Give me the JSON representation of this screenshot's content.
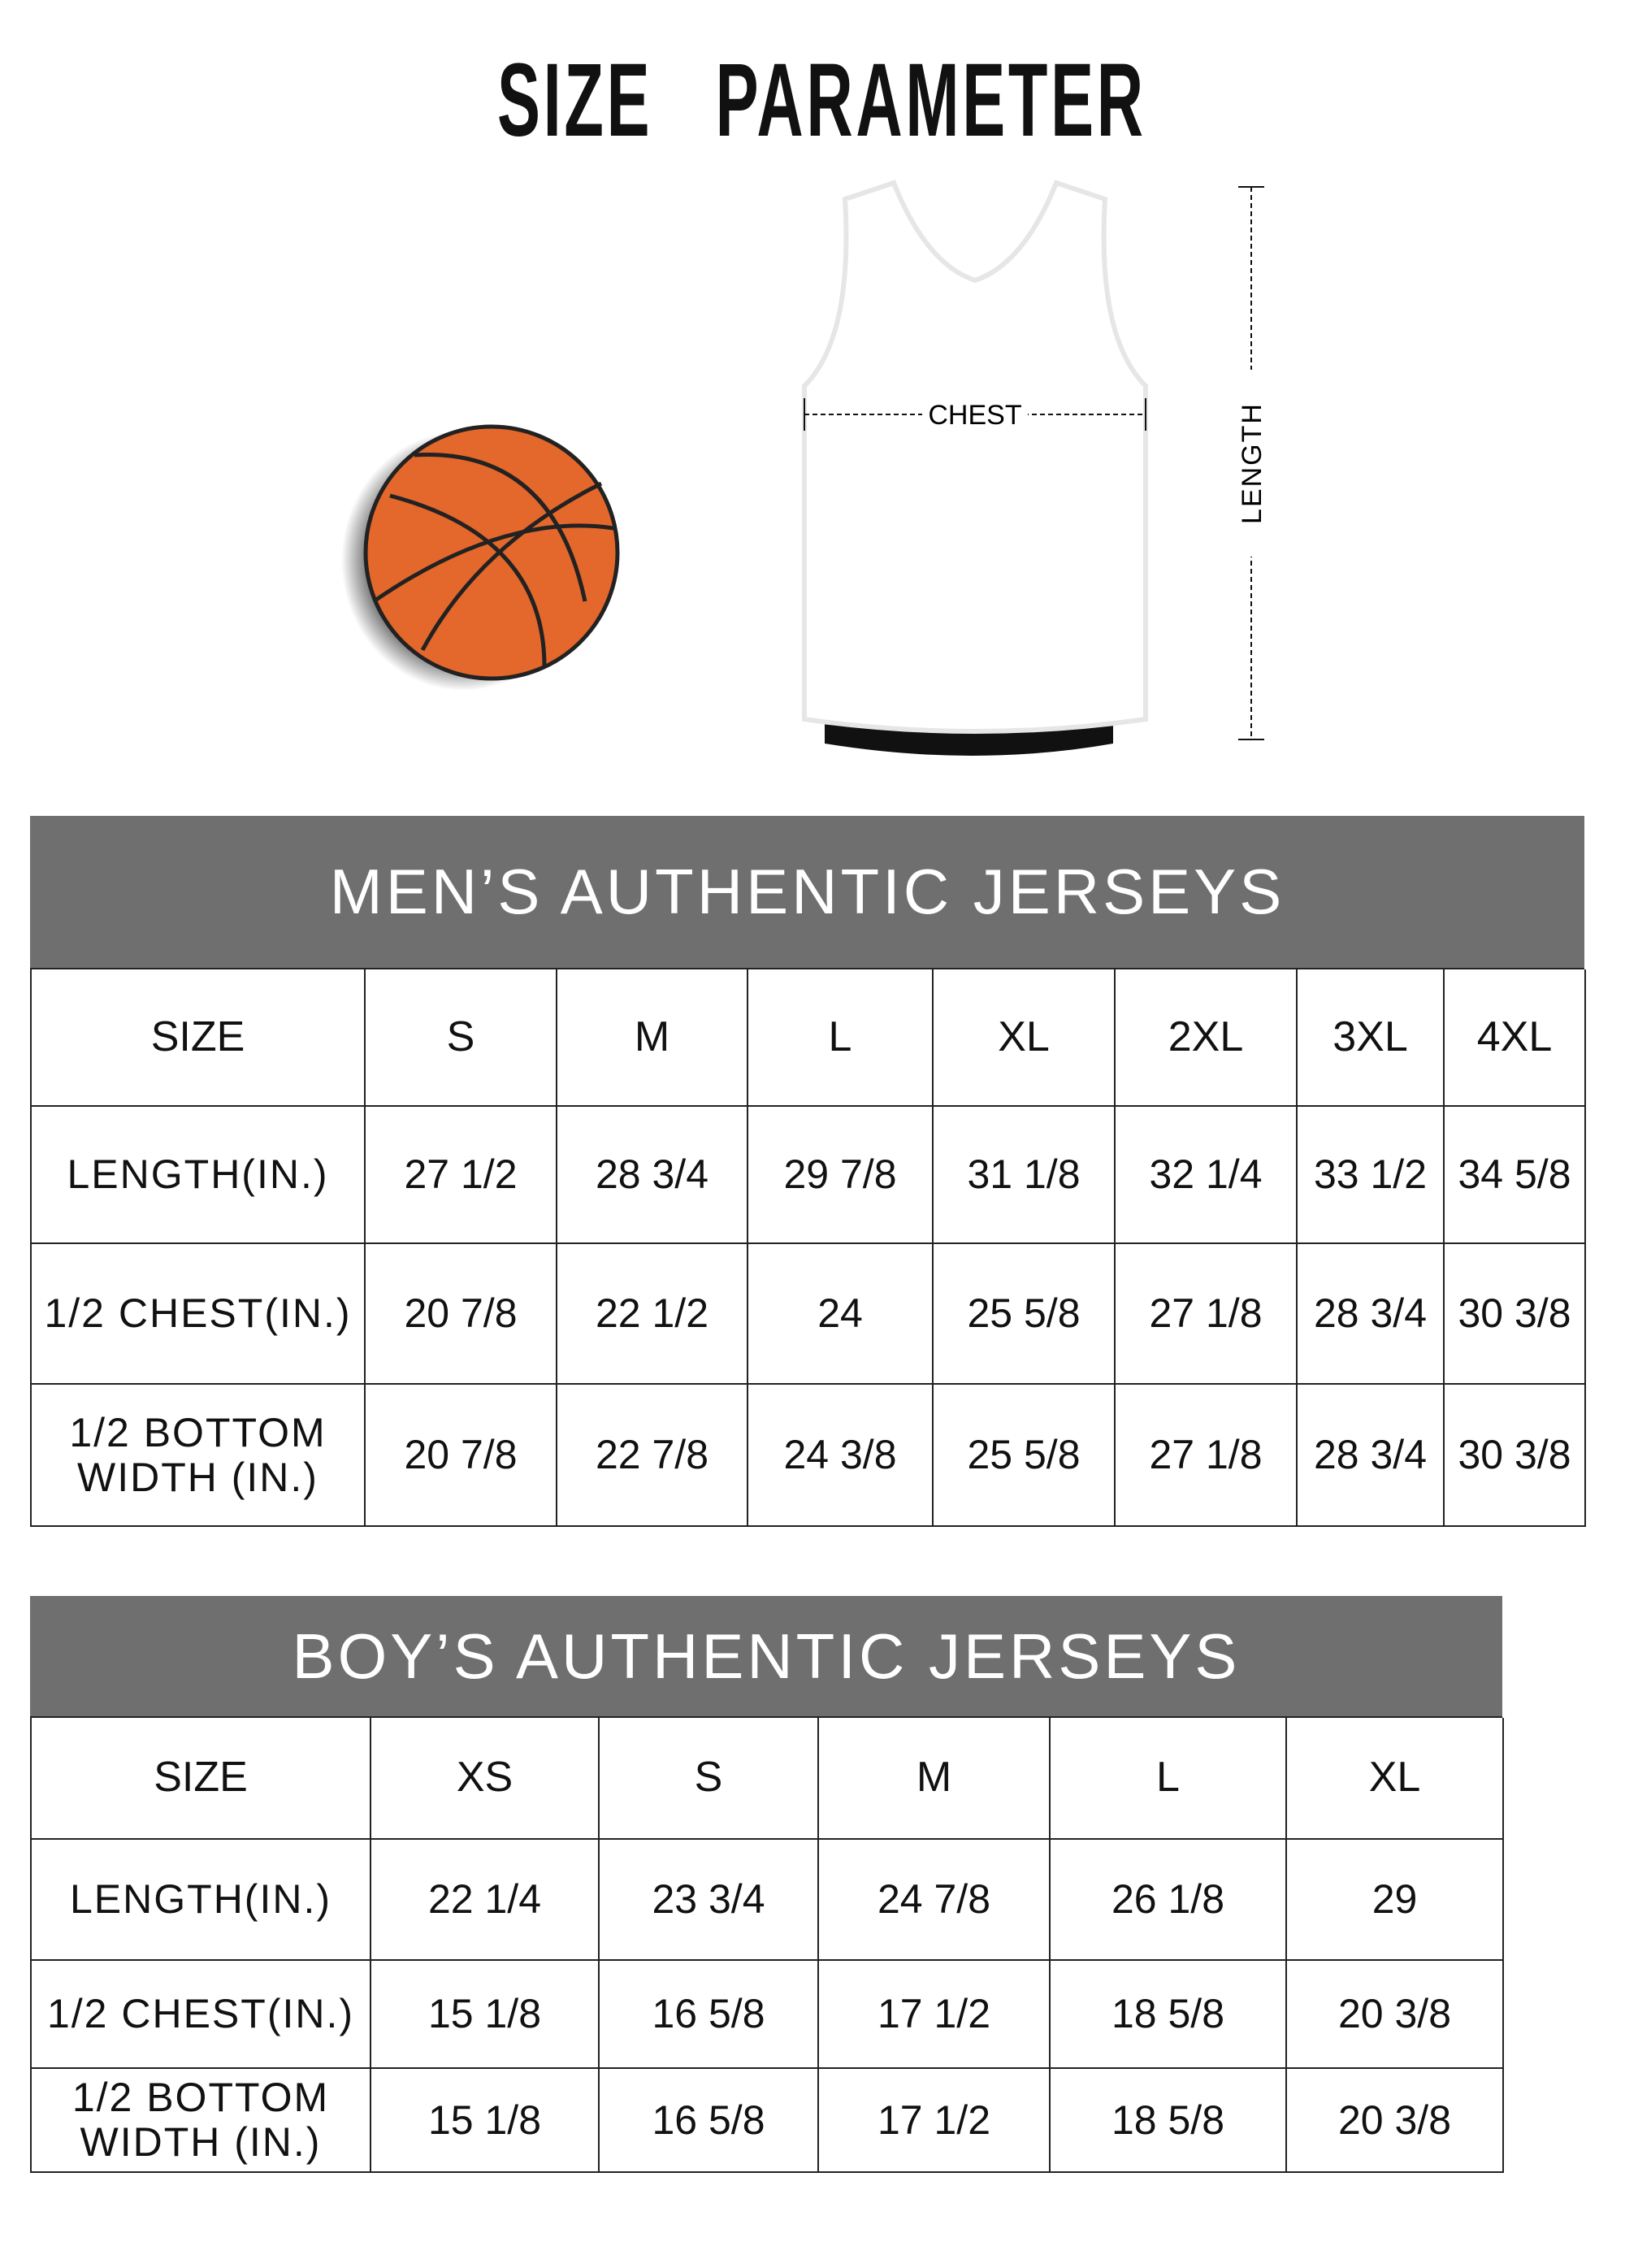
{
  "title": "SIZE   PARAMETER",
  "diagram": {
    "chest_label": "CHEST",
    "length_label": "LENGTH"
  },
  "colors": {
    "header_band": "#6f6f6f",
    "ball": "#e4672b"
  },
  "men": {
    "title": "MEN’S AUTHENTIC JERSEYS",
    "header": [
      "SIZE",
      "S",
      "M",
      "L",
      "XL",
      "2XL",
      "3XL",
      "4XL"
    ],
    "rows": [
      [
        "LENGTH(IN.)",
        "27  1/2",
        "28  3/4",
        "29  7/8",
        "31  1/8",
        "32  1/4",
        "33  1/2",
        "34  5/8"
      ],
      [
        "1/2 CHEST(IN.)",
        "20  7/8",
        "22  1/2",
        "24",
        "25  5/8",
        "27  1/8",
        "28  3/4",
        "30  3/8"
      ],
      [
        "1/2 BOTTOM\nWIDTH  (IN.)",
        "20  7/8",
        "22  7/8",
        "24  3/8",
        "25  5/8",
        "27  1/8",
        "28  3/4",
        "30  3/8"
      ]
    ]
  },
  "boys": {
    "title": "BOY’S AUTHENTIC JERSEYS",
    "header": [
      "SIZE",
      "XS",
      "S",
      "M",
      "L",
      "XL"
    ],
    "rows": [
      [
        "LENGTH(IN.)",
        "22  1/4",
        "23  3/4",
        "24  7/8",
        "26  1/8",
        "29"
      ],
      [
        "1/2 CHEST(IN.)",
        "15  1/8",
        "16  5/8",
        "17  1/2",
        "18  5/8",
        "20  3/8"
      ],
      [
        "1/2 BOTTOM\nWIDTH  (IN.)",
        "15  1/8",
        "16  5/8",
        "17  1/2",
        "18  5/8",
        "20  3/8"
      ]
    ]
  }
}
